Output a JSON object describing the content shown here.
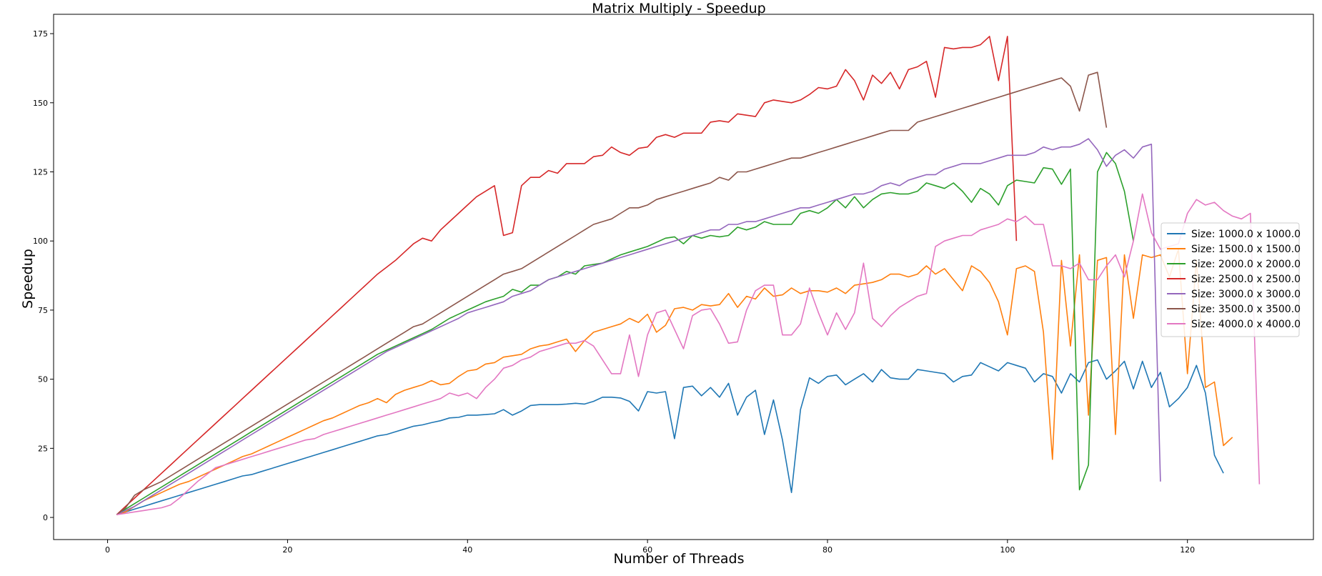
{
  "chart_data": {
    "type": "line",
    "title": "Matrix Multiply - Speedup",
    "xlabel": "Number of Threads",
    "ylabel": "Speedup",
    "xlim": [
      -6,
      134
    ],
    "ylim": [
      -8,
      182
    ],
    "xticks": [
      0,
      20,
      40,
      60,
      80,
      100,
      120
    ],
    "yticks": [
      0,
      25,
      50,
      75,
      100,
      125,
      150,
      175
    ],
    "grid": false,
    "legend_position": "center-right",
    "x_start": 1,
    "x_step": 1,
    "series": [
      {
        "name": "Size: 1000.0 x 1000.0",
        "color": "#1f77b4",
        "values": [
          1,
          2,
          3,
          4,
          5,
          6,
          7,
          8,
          9,
          10,
          11,
          12,
          13,
          14,
          15,
          15.5,
          16.5,
          17.5,
          18.5,
          19.5,
          20.5,
          21.5,
          22.5,
          23.5,
          24.5,
          25.5,
          26.5,
          27.5,
          28.5,
          29.5,
          30,
          31,
          32,
          33,
          33.5,
          34.3,
          35,
          36,
          36.2,
          37,
          37,
          37.2,
          37.5,
          39,
          37,
          38.5,
          40.5,
          40.8,
          40.8,
          40.8,
          41,
          41.3,
          41,
          42,
          43.5,
          43.5,
          43.2,
          42,
          38.5,
          45.5,
          45,
          45.5,
          28.5,
          47,
          47.5,
          44,
          47,
          43.5,
          48.5,
          37,
          43.5,
          46,
          30,
          42.5,
          28,
          9,
          39,
          50.5,
          48.5,
          51,
          51.5,
          48,
          50,
          52,
          49,
          53.5,
          50.5,
          50,
          50,
          53.5,
          53,
          52.5,
          52,
          49,
          51,
          51.5,
          56,
          54.5,
          53,
          56,
          55,
          54,
          49,
          52,
          51,
          45,
          52,
          49,
          56,
          57,
          50,
          53,
          56.5,
          46.5,
          56.5,
          47,
          52.5,
          40,
          43,
          47,
          55,
          45,
          22.5,
          16
        ]
      },
      {
        "name": "Size: 1500.0 x 1500.0",
        "color": "#ff7f0e",
        "values": [
          1,
          2,
          4,
          6,
          7.5,
          9,
          10.5,
          12,
          13,
          14.5,
          16,
          17.5,
          19,
          20.5,
          22,
          23,
          24.5,
          26,
          27.5,
          29,
          30.5,
          32,
          33.5,
          35,
          36,
          37.5,
          39,
          40.5,
          41.5,
          43,
          41.5,
          44.5,
          46,
          47,
          48,
          49.5,
          48,
          48.5,
          51,
          53,
          53.5,
          55.5,
          56,
          58,
          58.5,
          59,
          61,
          62,
          62.5,
          63.5,
          64.5,
          60,
          64,
          67,
          68,
          69,
          70,
          72,
          70.5,
          73.5,
          67,
          69.5,
          75.5,
          76,
          75,
          77,
          76.5,
          77,
          81,
          76,
          80,
          79,
          83,
          80,
          80.5,
          83,
          81,
          82,
          82,
          81.5,
          83,
          81,
          84,
          84.5,
          85,
          86,
          88,
          88,
          87,
          88,
          91,
          88,
          90,
          86,
          82,
          91,
          89,
          85,
          78,
          66,
          90,
          91,
          89,
          67,
          21,
          93,
          62,
          95,
          37,
          93,
          94,
          30,
          95,
          72,
          95,
          94,
          95,
          87,
          97,
          52,
          93,
          47,
          49,
          26,
          29
        ]
      },
      {
        "name": "Size: 2000.0 x 2000.0",
        "color": "#2ca02c",
        "values": [
          1,
          3,
          5,
          7,
          9,
          11,
          13,
          15,
          17,
          19,
          21,
          23,
          25,
          27,
          29,
          31,
          33,
          35,
          37,
          39,
          41,
          43,
          45,
          47,
          49,
          51,
          53,
          55,
          57,
          59,
          60.5,
          62,
          63.5,
          65,
          66.5,
          68,
          70,
          72,
          73.5,
          75,
          76.5,
          78,
          79,
          80,
          82.5,
          81.5,
          84,
          84,
          86,
          87,
          89,
          88,
          91,
          91.5,
          92,
          93.5,
          95,
          96,
          97,
          98,
          99.5,
          101,
          101.5,
          99,
          102,
          101,
          102,
          101.5,
          102,
          105,
          104,
          105,
          107,
          106,
          106,
          106,
          110,
          111,
          110,
          112,
          115,
          112,
          116,
          112,
          115,
          117,
          117.5,
          117,
          117,
          118,
          121,
          120,
          119,
          121,
          118,
          114,
          119,
          117,
          113,
          120,
          122,
          121.5,
          121,
          126.5,
          126,
          120.5,
          126,
          10,
          19,
          125,
          132,
          128,
          118,
          100
        ]
      },
      {
        "name": "Size: 2500.0 x 2500.0",
        "color": "#d62728",
        "values": [
          1,
          4,
          7,
          10,
          13,
          16,
          19,
          22,
          25,
          28,
          31,
          34,
          37,
          40,
          43,
          46,
          49,
          52,
          55,
          58,
          61,
          64,
          67,
          70,
          73,
          76,
          79,
          82,
          85,
          88,
          90.5,
          93,
          96,
          99,
          101,
          100,
          104,
          107,
          110,
          113,
          116,
          118,
          120,
          102,
          103,
          120,
          123,
          123,
          125.5,
          124.5,
          128,
          128,
          128,
          130.5,
          131,
          134,
          132,
          131,
          133.5,
          134,
          137.5,
          138.5,
          137.5,
          139,
          139,
          139,
          143,
          143.5,
          143,
          146,
          145.5,
          145,
          150,
          151,
          150.5,
          150,
          151,
          153,
          155.5,
          155,
          156,
          162,
          158,
          151,
          160,
          157,
          161,
          155,
          162,
          163,
          165,
          152,
          170,
          169.5,
          170,
          170,
          171,
          174,
          158,
          174,
          100
        ]
      },
      {
        "name": "Size: 3000.0 x 3000.0",
        "color": "#9467bd",
        "values": [
          1,
          2.5,
          4,
          6,
          8,
          10,
          12,
          14,
          16,
          18,
          20,
          22,
          24,
          26,
          28,
          30,
          32,
          34,
          36,
          38,
          40,
          42,
          44,
          46,
          48,
          50,
          52,
          54,
          56,
          58,
          60,
          61.5,
          63,
          64.5,
          66,
          67.5,
          69,
          70.5,
          72,
          74,
          75,
          76,
          77,
          78,
          80,
          81,
          82,
          84,
          86,
          87,
          88,
          89,
          90,
          91,
          92,
          93,
          94,
          95,
          96,
          97,
          98,
          99,
          100,
          101,
          102,
          103,
          104,
          104,
          106,
          106,
          107,
          107,
          108,
          109,
          110,
          111,
          112,
          112,
          113,
          114,
          115,
          116,
          117,
          117,
          118,
          120,
          121,
          120,
          122,
          123,
          124,
          124,
          126,
          127,
          128,
          128,
          128,
          129,
          130,
          131,
          131,
          131,
          132,
          134,
          133,
          134,
          134,
          135,
          137,
          133,
          127,
          131,
          133,
          130,
          134,
          135,
          13
        ]
      },
      {
        "name": "Size: 3500.0 x 3500.0",
        "color": "#8c564b",
        "values": [
          1,
          3.5,
          8,
          10,
          11.5,
          13,
          15,
          17,
          19,
          21,
          23,
          25,
          27,
          29,
          31,
          33,
          35,
          37,
          39,
          41,
          43,
          45,
          47,
          49,
          51,
          53,
          55,
          57,
          59,
          61,
          63,
          65,
          67,
          69,
          70,
          72,
          74,
          76,
          78,
          80,
          82,
          84,
          86,
          88,
          89,
          90,
          92,
          94,
          96,
          98,
          100,
          102,
          104,
          106,
          107,
          108,
          110,
          112,
          112,
          113,
          115,
          116,
          117,
          118,
          119,
          120,
          121,
          123,
          122,
          125,
          125,
          126,
          127,
          128,
          129,
          130,
          130,
          131,
          132,
          133,
          134,
          135,
          136,
          137,
          138,
          139,
          140,
          140,
          140,
          143,
          144,
          145,
          146,
          147,
          148,
          149,
          150,
          151,
          152,
          153,
          154,
          155,
          156,
          157,
          158,
          159,
          156,
          147,
          160,
          161,
          141
        ]
      },
      {
        "name": "Size: 4000.0 x 4000.0",
        "color": "#e377c2",
        "values": [
          1,
          1.5,
          2,
          2.5,
          3,
          3.5,
          4.5,
          7,
          10,
          13,
          15.5,
          18,
          19,
          20,
          21,
          22,
          23,
          24,
          25,
          26,
          27,
          28,
          28.5,
          30,
          31,
          32,
          33,
          34,
          35,
          36,
          37,
          38,
          39,
          40,
          41,
          42,
          43,
          45,
          44,
          45,
          43,
          47,
          50,
          54,
          55,
          57,
          58,
          60,
          61,
          62,
          63,
          63,
          64,
          62,
          57,
          52,
          52,
          66,
          51,
          66,
          74,
          75,
          68,
          61,
          73,
          75,
          75.5,
          70,
          63,
          63.5,
          75,
          82,
          84,
          84,
          66,
          66,
          70,
          83,
          74,
          66,
          74,
          68,
          74,
          92,
          72,
          69,
          73,
          76,
          78,
          80,
          81,
          98,
          100,
          101,
          102,
          102,
          104,
          105,
          106,
          108,
          107,
          109,
          106,
          106,
          91,
          91,
          90,
          92,
          86,
          86,
          91,
          95,
          87,
          100,
          117,
          103,
          97,
          98,
          99,
          110,
          115,
          113,
          114,
          111,
          109,
          108,
          110,
          12
        ]
      }
    ]
  }
}
